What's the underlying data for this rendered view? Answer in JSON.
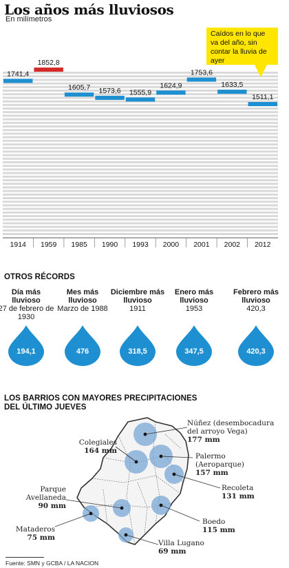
{
  "title": "Los años más lluviosos",
  "subtitle": "En milímetros",
  "callout": "Caídos en lo que va del año, sin contar la lluvia de ayer",
  "colors": {
    "bar": "#1e8fd0",
    "highlight": "#d42a2a",
    "stripe": "#d9d9d9",
    "drop": "#1e8fd0",
    "bubble": "#7aa7d6"
  },
  "chart_data": {
    "type": "bar",
    "title": "Los años más lluviosos",
    "subtitle": "En milímetros",
    "categories": [
      "1914",
      "1959",
      "1985",
      "1990",
      "1993",
      "2000",
      "2001",
      "2002",
      "2012"
    ],
    "values": [
      1741.4,
      1852.8,
      1605.7,
      1573.6,
      1555.9,
      1624.9,
      1753.6,
      1633.5,
      1511.1
    ],
    "value_labels": [
      "1741,4",
      "1852,8",
      "1605,7",
      "1573,6",
      "1555,9",
      "1624,9",
      "1753,6",
      "1633,5",
      "1511,1"
    ],
    "highlight": "1959",
    "ylim": [
      0,
      1900
    ]
  },
  "records": {
    "title": "OTROS RÉCORDS",
    "items": [
      {
        "title": "Día más lluvioso",
        "sub": "27 de febrero de 1930",
        "value": "194,1"
      },
      {
        "title": "Mes más lluvioso",
        "sub": "Marzo de 1988",
        "value": "476"
      },
      {
        "title": "Diciembre más lluvioso",
        "sub": "1911",
        "value": "318,5"
      },
      {
        "title": "Enero más lluvioso",
        "sub": "1953",
        "value": "347,5"
      },
      {
        "title": "Febrero más lluvioso",
        "sub": "420,3",
        "value": "420,3"
      }
    ]
  },
  "map": {
    "title_line1": "LOS BARRIOS CON MAYORES PRECIPITACIONES",
    "title_line2": "DEL ÚLTIMO JUEVES",
    "barrios": [
      {
        "name": "Núñez (desembocadura del arroyo Vega)",
        "l1": "Núñez (desembocadura",
        "l2": "del arroyo Vega)",
        "mm": "177 mm",
        "value": 177
      },
      {
        "name": "Colegiales",
        "l1": "Colegiales",
        "l2": "",
        "mm": "164 mm",
        "value": 164
      },
      {
        "name": "Palermo (Aeroparque)",
        "l1": "Palermo",
        "l2": "(Aeroparque)",
        "mm": "157 mm",
        "value": 157
      },
      {
        "name": "Recoleta",
        "l1": "Recoleta",
        "l2": "",
        "mm": "131 mm",
        "value": 131
      },
      {
        "name": "Parque Avellaneda",
        "l1": "Parque",
        "l2": "Avellaneda",
        "mm": "90 mm",
        "value": 90
      },
      {
        "name": "Boedo",
        "l1": "Boedo",
        "l2": "",
        "mm": "115 mm",
        "value": 115
      },
      {
        "name": "Mataderos",
        "l1": "Mataderos",
        "l2": "",
        "mm": "75 mm",
        "value": 75
      },
      {
        "name": "Villa Lugano",
        "l1": "Villa Lugano",
        "l2": "",
        "mm": "69 mm",
        "value": 69
      }
    ]
  },
  "footer": "Fuente: SMN y GCBA / LA NACION"
}
